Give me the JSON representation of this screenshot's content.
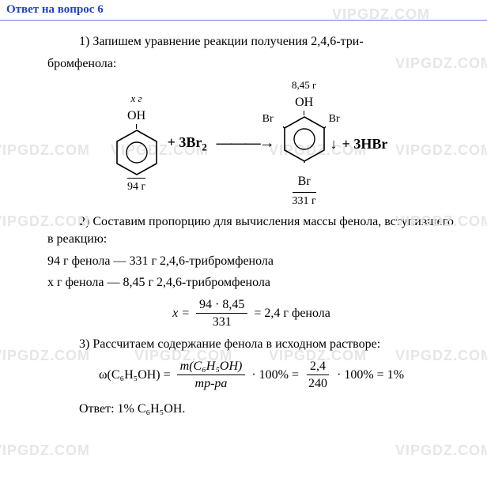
{
  "header": "Ответ на вопрос 6",
  "watermarks": {
    "text": "VIPGDZ.COM",
    "color": "#e6e6e6",
    "fontsize": 18,
    "positions": [
      {
        "t": 8,
        "l": 420
      },
      {
        "t": 70,
        "l": 500
      },
      {
        "t": 180,
        "l": -10
      },
      {
        "t": 180,
        "l": 140
      },
      {
        "t": 180,
        "l": 340
      },
      {
        "t": 180,
        "l": 500
      },
      {
        "t": 270,
        "l": -10
      },
      {
        "t": 270,
        "l": 500
      },
      {
        "t": 440,
        "l": -10
      },
      {
        "t": 440,
        "l": 170
      },
      {
        "t": 440,
        "l": 340
      },
      {
        "t": 440,
        "l": 500
      },
      {
        "t": 560,
        "l": -10
      },
      {
        "t": 560,
        "l": 500
      }
    ]
  },
  "step1": {
    "label": "1) Запишем уравнение реакции получения 2,4,6-три-",
    "label2": "бромфенола:",
    "reactant": {
      "top_mass": "x г",
      "oh": "OH",
      "bottom_mass": "94 г"
    },
    "plus1": "+ 3Br",
    "plus1_sub": "2",
    "arrow": "———→",
    "product": {
      "top_mass": "8,45 г",
      "oh": "OH",
      "br_left": "Br",
      "br_right": "Br",
      "br_bottom": "Br",
      "bottom_mass": "331 г"
    },
    "down": "↓",
    "plus2": "+ 3HBr"
  },
  "step2": {
    "label": "2) Составим пропорцию для вычисления массы фенола, вступившего в реакцию:",
    "line1": "94 г фенола — 331 г 2,4,6-трибромфенола",
    "line2": "х г фенола — 8,45 г 2,4,6-трибромфенола",
    "eq_left": "x =",
    "eq_num": "94 · 8,45",
    "eq_den": "331",
    "eq_right": "= 2,4 г фенола"
  },
  "step3": {
    "label": "3) Рассчитаем содержание фенола в исходном растворе:",
    "omega_left": "ω(C₆H₅OH) =",
    "frac1_num": "m(C₆H₅OH)",
    "frac1_den": "mр-ра",
    "mid": "· 100% =",
    "frac2_num": "2,4",
    "frac2_den": "240",
    "right": "· 100% = 1%"
  },
  "answer": "Ответ: 1% C₆H₅OH."
}
